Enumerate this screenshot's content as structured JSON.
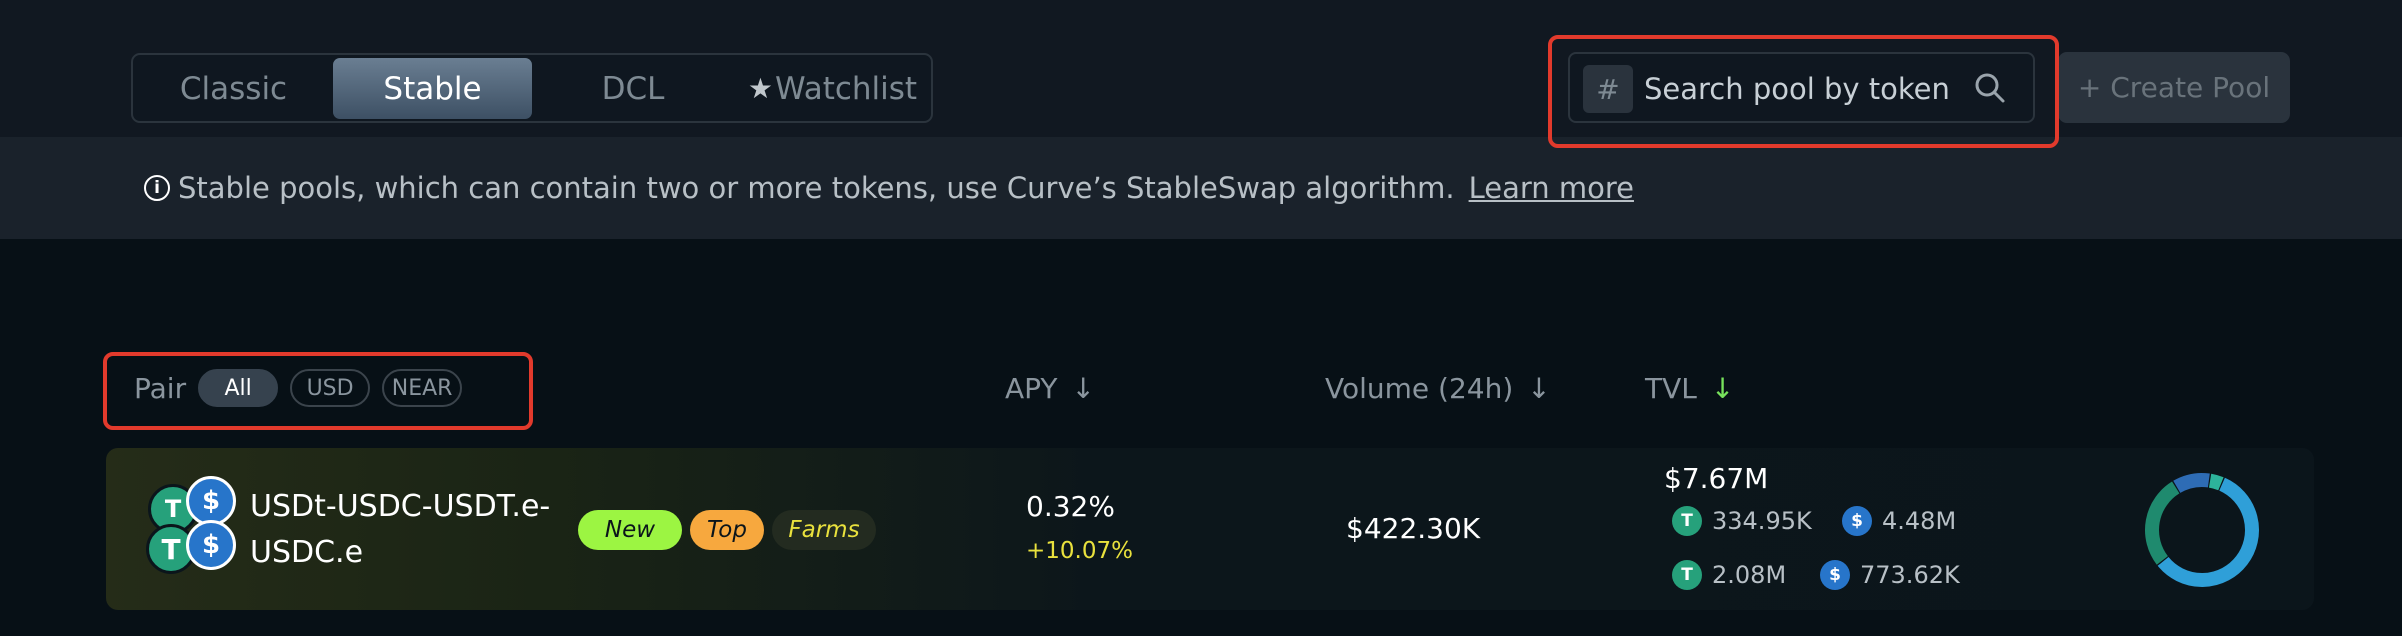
{
  "tabs": [
    {
      "label": "Classic"
    },
    {
      "label": "Stable"
    },
    {
      "label": "DCL"
    },
    {
      "label": "Watchlist"
    }
  ],
  "search": {
    "hash": "#",
    "placeholder": "Search pool by token"
  },
  "create_pool": {
    "label": "+ Create Pool"
  },
  "info": {
    "icon": "i",
    "text": "Stable pools, which can contain two or more tokens, use Curve’s StableSwap algorithm.",
    "learn_more": "Learn more"
  },
  "table_header": {
    "pair": "Pair",
    "filters": [
      "All",
      "USD",
      "NEAR"
    ],
    "apy": "APY",
    "apy_arrow": "↓",
    "volume": "Volume (24h)",
    "volume_arrow": "↓",
    "tvl": "TVL",
    "tvl_arrow": "↓"
  },
  "rows": [
    {
      "pair_line1": "USDt-USDC-USDT.e-",
      "pair_line2": "USDC.e",
      "badges": [
        "New",
        "Top",
        "Farms"
      ],
      "apy": "0.32%",
      "apy_change": "+10.07%",
      "volume": "$422.30K",
      "tvl": "$7.67M",
      "tvl_breakdown": [
        {
          "icon": "usdt-icon",
          "value": "334.95K"
        },
        {
          "icon": "usdc-icon",
          "value": "4.48M"
        },
        {
          "icon": "usdt-e-icon",
          "value": "2.08M"
        },
        {
          "icon": "usdc-e-icon",
          "value": "773.62K"
        }
      ],
      "tvl_share": [
        {
          "token": "usdt-icon",
          "fraction": 0.04,
          "color": "#2db39b"
        },
        {
          "token": "usdc-icon",
          "fraction": 0.58,
          "color": "#2f9fd8"
        },
        {
          "token": "usdt-e-icon",
          "fraction": 0.27,
          "color": "#1f8a6e"
        },
        {
          "token": "usdc-e-icon",
          "fraction": 0.11,
          "color": "#2e6cb5"
        }
      ]
    }
  ],
  "colors": {
    "accent_green": "#77e25c",
    "apy_yellow": "#e9e13d",
    "highlight_red": "#e23a2c",
    "badge_new": "#9cf542",
    "badge_top": "#f7a83e"
  }
}
